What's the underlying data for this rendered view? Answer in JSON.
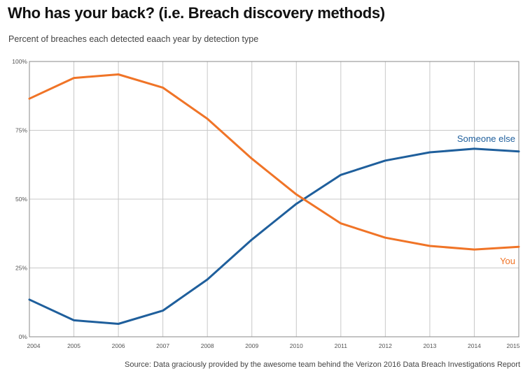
{
  "chart_data": {
    "type": "line",
    "title": "Who has your back? (i.e. Breach discovery methods)",
    "subtitle": "Percent of breaches each detected eaach year by detection type",
    "source": "Source: Data graciously provided by the awesome team behind the Verizon 2016 Data Breach Investigations Report",
    "xlabel": "",
    "ylabel": "",
    "ylim": [
      0,
      100
    ],
    "grid": true,
    "x": [
      "2004",
      "2005",
      "2006",
      "2007",
      "2008",
      "2009",
      "2010",
      "2011",
      "2012",
      "2013",
      "2014",
      "2015"
    ],
    "y_ticks": [
      0,
      25,
      50,
      75,
      100
    ],
    "y_tick_labels": [
      "0%",
      "25%",
      "50%",
      "75%",
      "100%"
    ],
    "series": [
      {
        "name": "Someone else",
        "color": "#1f5f9c",
        "values": [
          13.5,
          6,
          4.7,
          9.5,
          20.8,
          35.3,
          48.3,
          58.8,
          64,
          67,
          68.3,
          67.3
        ]
      },
      {
        "name": "You",
        "color": "#f07427",
        "values": [
          86.5,
          94,
          95.3,
          90.5,
          79.2,
          64.7,
          51.7,
          41.2,
          36,
          33,
          31.7,
          32.7
        ]
      }
    ]
  }
}
